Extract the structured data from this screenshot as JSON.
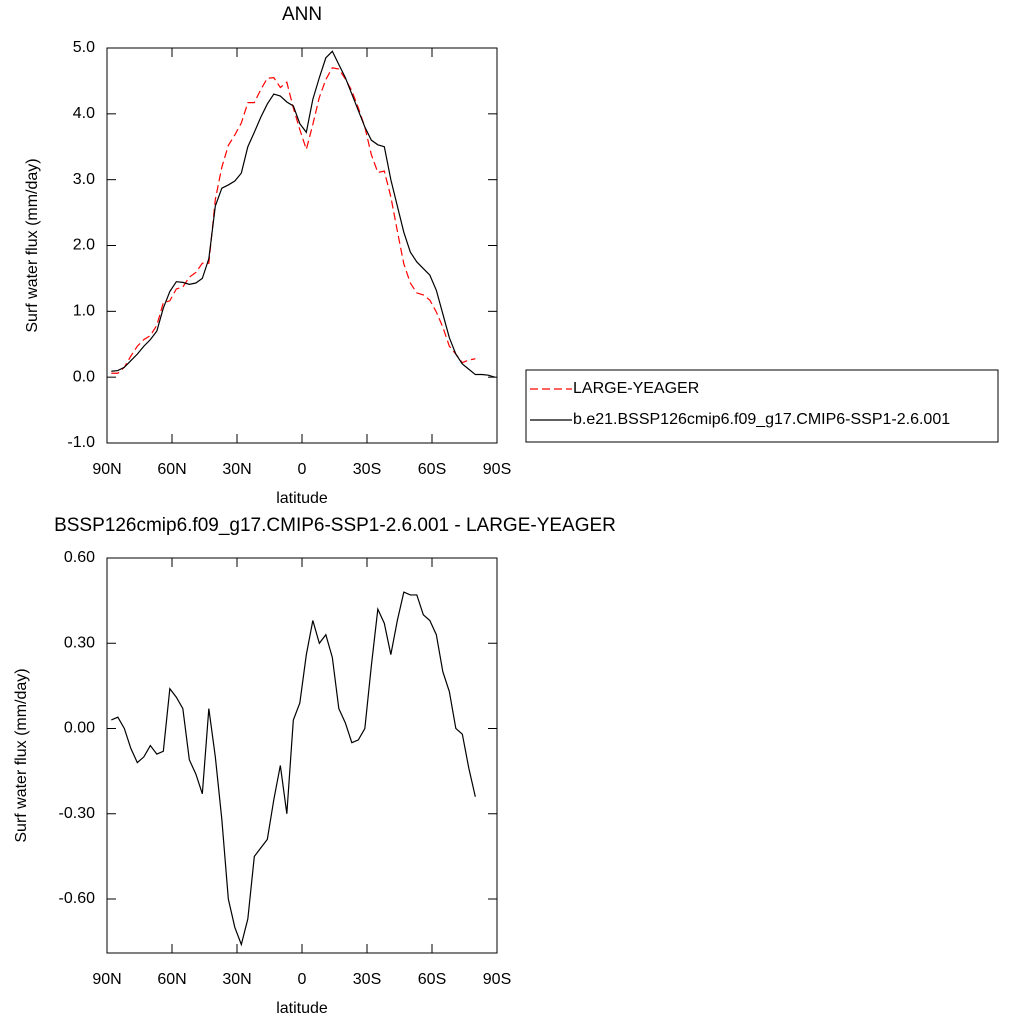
{
  "chart_data": [
    {
      "type": "line",
      "title": "ANN",
      "xlabel": "latitude",
      "ylabel": "Surf water flux (mm/day)",
      "x": [
        88,
        85,
        82,
        79,
        76,
        73,
        70,
        67,
        64,
        61,
        58,
        55,
        52,
        49,
        46,
        43,
        40,
        37,
        34,
        31,
        28,
        25,
        22,
        19,
        16,
        13,
        10,
        7,
        4,
        1,
        -2,
        -5,
        -8,
        -11,
        -14,
        -17,
        -20,
        -23,
        -26,
        -29,
        -32,
        -35,
        -38,
        -41,
        -44,
        -47,
        -50,
        -53,
        -56,
        -59,
        -62,
        -65,
        -68,
        -71,
        -74,
        -77,
        -80,
        -83,
        -86,
        -89
      ],
      "series": [
        {
          "name": "LARGE-YEAGER",
          "color": "#ff0000",
          "dash": "dashed",
          "values": [
            0.06,
            0.06,
            0.15,
            0.32,
            0.47,
            0.57,
            0.63,
            0.79,
            1.13,
            1.16,
            1.34,
            1.37,
            1.52,
            1.59,
            1.73,
            1.73,
            2.7,
            3.19,
            3.52,
            3.68,
            3.86,
            4.17,
            4.17,
            4.37,
            4.54,
            4.55,
            4.4,
            4.48,
            4.09,
            3.76,
            3.46,
            3.84,
            4.25,
            4.52,
            4.7,
            4.68,
            4.53,
            4.35,
            4.09,
            3.8,
            3.38,
            3.11,
            3.13,
            2.74,
            2.22,
            1.72,
            1.43,
            1.28,
            1.25,
            1.17,
            0.99,
            0.76,
            0.47,
            0.35,
            0.22,
            0.26,
            0.28,
            null,
            null,
            null
          ]
        },
        {
          "name": "b.e21.BSSP126cmip6.f09_g17.CMIP6-SSP1-2.6.001",
          "color": "#000000",
          "dash": "solid",
          "values": [
            0.09,
            0.1,
            0.15,
            0.25,
            0.35,
            0.47,
            0.57,
            0.7,
            1.05,
            1.3,
            1.45,
            1.44,
            1.41,
            1.43,
            1.5,
            1.8,
            2.6,
            2.87,
            2.92,
            2.98,
            3.1,
            3.5,
            3.72,
            3.95,
            4.15,
            4.3,
            4.27,
            4.18,
            4.12,
            3.85,
            3.72,
            4.22,
            4.55,
            4.85,
            4.95,
            4.75,
            4.55,
            4.3,
            4.05,
            3.8,
            3.6,
            3.53,
            3.5,
            3.0,
            2.6,
            2.2,
            1.9,
            1.75,
            1.65,
            1.55,
            1.32,
            0.96,
            0.6,
            0.35,
            0.2,
            0.12,
            0.04,
            0.04,
            0.03,
            0.0
          ]
        }
      ],
      "xlim": [
        90,
        -90
      ],
      "xticks": [
        {
          "value": 90,
          "label": "90N"
        },
        {
          "value": 60,
          "label": "60N"
        },
        {
          "value": 30,
          "label": "30N"
        },
        0,
        {
          "value": -30,
          "label": "30S"
        },
        {
          "value": -60,
          "label": "60S"
        },
        {
          "value": -90,
          "label": "90S"
        }
      ],
      "ylim": [
        -1,
        5
      ],
      "yticks": [
        {
          "value": 5,
          "label": "5.0"
        },
        {
          "value": 4,
          "label": "4.0"
        },
        {
          "value": 3,
          "label": "3.0"
        },
        {
          "value": 2,
          "label": "2.0"
        },
        {
          "value": 1,
          "label": "1.0"
        },
        {
          "value": 0,
          "label": "0.0"
        },
        {
          "value": -1,
          "label": "-1.0"
        }
      ],
      "legend": "right"
    },
    {
      "type": "line",
      "title": "BSSP126cmip6.f09_g17.CMIP6-SSP1-2.6.001 - LARGE-YEAGER",
      "xlabel": "latitude",
      "ylabel": "Surf water flux (mm/day)",
      "x": [
        88,
        85,
        82,
        79,
        76,
        73,
        70,
        67,
        64,
        61,
        58,
        55,
        52,
        49,
        46,
        43,
        40,
        37,
        34,
        31,
        28,
        25,
        22,
        19,
        16,
        13,
        10,
        7,
        4,
        1,
        -2,
        -5,
        -8,
        -11,
        -14,
        -17,
        -20,
        -23,
        -26,
        -29,
        -32,
        -35,
        -38,
        -41,
        -44,
        -47,
        -50,
        -53,
        -56,
        -59,
        -62,
        -65,
        -68,
        -71,
        -74,
        -77,
        -80
      ],
      "series": [
        {
          "color": "#000000",
          "dash": "solid",
          "values": [
            0.03,
            0.04,
            0.0,
            -0.07,
            -0.12,
            -0.1,
            -0.06,
            -0.09,
            -0.08,
            0.14,
            0.11,
            0.07,
            -0.11,
            -0.16,
            -0.23,
            0.07,
            -0.1,
            -0.32,
            -0.6,
            -0.7,
            -0.76,
            -0.67,
            -0.45,
            -0.42,
            -0.39,
            -0.25,
            -0.13,
            -0.3,
            0.03,
            0.09,
            0.26,
            0.38,
            0.3,
            0.33,
            0.25,
            0.07,
            0.02,
            -0.05,
            -0.04,
            0.0,
            0.22,
            0.42,
            0.37,
            0.26,
            0.38,
            0.48,
            0.47,
            0.47,
            0.4,
            0.38,
            0.33,
            0.2,
            0.13,
            0.0,
            -0.02,
            -0.14,
            -0.24
          ]
        }
      ],
      "xlim": [
        90,
        -90
      ],
      "xticks": [
        {
          "value": 90,
          "label": "90N"
        },
        {
          "value": 60,
          "label": "60N"
        },
        {
          "value": 30,
          "label": "30N"
        },
        0,
        {
          "value": -30,
          "label": "30S"
        },
        {
          "value": -60,
          "label": "60S"
        },
        {
          "value": -90,
          "label": "90S"
        }
      ],
      "ylim": [
        -0.79,
        0.6
      ],
      "yticks": [
        {
          "value": 0.6,
          "label": "0.60"
        },
        {
          "value": 0.3,
          "label": "0.30"
        },
        {
          "value": 0,
          "label": "0.00"
        },
        {
          "value": -0.3,
          "label": "-0.30"
        },
        {
          "value": -0.6,
          "label": "-0.60"
        }
      ]
    }
  ]
}
